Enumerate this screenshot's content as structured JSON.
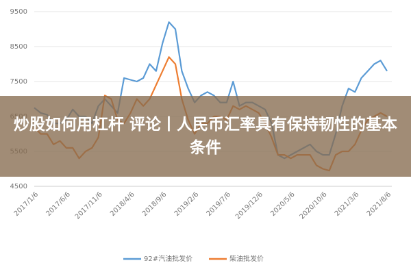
{
  "chart_data": {
    "type": "line",
    "title": "炒股如何用杠杆 评论丨人民币汇率具有保持韧性的基本条件",
    "categories": [
      "2017/1/6",
      null,
      null,
      null,
      null,
      "2017/6/6",
      null,
      null,
      null,
      null,
      "2017/11/6",
      null,
      null,
      null,
      null,
      "2018/4/6",
      null,
      null,
      null,
      null,
      "2018/9/6",
      null,
      null,
      null,
      null,
      "2019/2/6",
      null,
      null,
      null,
      null,
      "2019/7/6",
      null,
      null,
      null,
      null,
      "2019/12/6",
      null,
      null,
      null,
      null,
      "2020/5/6",
      null,
      null,
      null,
      null,
      "2020/10/6",
      null,
      null,
      null,
      null,
      "2021/3/6",
      null,
      null,
      null,
      null,
      "2021/8/6"
    ],
    "series": [
      {
        "name": "92#汽油批发价",
        "color": "#5b9bd5",
        "values": [
          6750,
          6600,
          6550,
          6300,
          6300,
          6400,
          6700,
          6500,
          6500,
          6300,
          6800,
          7000,
          6800,
          6600,
          7600,
          7550,
          7500,
          7600,
          8000,
          7800,
          8600,
          9200,
          9000,
          7800,
          7300,
          6900,
          7100,
          7200,
          7100,
          6900,
          6900,
          7500,
          6800,
          6900,
          6900,
          6800,
          6700,
          6300,
          5400,
          5300,
          5400,
          5500,
          5600,
          5700,
          5500,
          5400,
          5400,
          6000,
          6800,
          7300,
          7200,
          7600,
          7800,
          8000,
          8100,
          7800
        ]
      },
      {
        "name": "柴油批发价",
        "color": "#ed7d31",
        "values": [
          6200,
          6000,
          6000,
          5700,
          5800,
          5600,
          5600,
          5300,
          5500,
          5600,
          5900,
          7100,
          7000,
          6400,
          6300,
          6600,
          7000,
          6800,
          7000,
          7400,
          7800,
          8200,
          8000,
          7000,
          6400,
          6000,
          6300,
          6300,
          6500,
          6500,
          6400,
          6800,
          6700,
          6800,
          6700,
          6600,
          6300,
          5900,
          5400,
          5400,
          5300,
          5400,
          5400,
          5400,
          5100,
          5000,
          4950,
          5400,
          5500,
          5500,
          5700,
          6100,
          6400,
          6500,
          6600,
          6500
        ]
      }
    ],
    "ylim": [
      4500,
      9500
    ],
    "yticks": [
      4500,
      5500,
      6500,
      7500,
      8500,
      9500
    ],
    "grid": true
  }
}
